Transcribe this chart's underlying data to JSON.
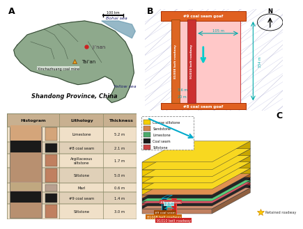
{
  "panel_A_label": "A",
  "panel_B_label": "B",
  "panel_C_label": "C",
  "map_annotations": {
    "jinan": "Ji’nan",
    "taian": "Tai’an",
    "mine": "Xinchazhuang coal mine",
    "province": "Shandong Province, China",
    "bohai": "Bohai sea",
    "yellow": "Yellow sea",
    "scale": "100 km"
  },
  "panel_B_annotations": {
    "top_label": "#9 coal seam goaf",
    "bottom_label": "#8 coal seam goaf",
    "roadway1": "81008 belt roadway",
    "roadway2": "91010 belt roadway",
    "dim1": "105 m",
    "dim2": "354 m",
    "dim3": "3.6 m",
    "dim4": "20 m"
  },
  "lithology_table": {
    "headers": [
      "Histogram",
      "Lithology",
      "Thickness"
    ],
    "rows": [
      {
        "lithology": "Limestone",
        "thickness": "5.2 m",
        "color": "#d4a57a"
      },
      {
        "lithology": "#8 coal seam",
        "thickness": "2.1 m",
        "color": "#1a1a1a"
      },
      {
        "lithology": "Argillaceous\nsiltstone",
        "thickness": "1.7 m",
        "color": "#c08060"
      },
      {
        "lithology": "Siltstone",
        "thickness": "5.0 m",
        "color": "#c08060"
      },
      {
        "lithology": "Marl",
        "thickness": "0.6 m",
        "color": "#b8a090"
      },
      {
        "lithology": "#9 coal seam",
        "thickness": "1.4 m",
        "color": "#1a1a1a"
      },
      {
        "lithology": "Siltstone",
        "thickness": "3.0 m",
        "color": "#c08060"
      }
    ]
  },
  "legend_items": [
    {
      "label": "Coarse siltstone",
      "color": "#f5d000"
    },
    {
      "label": "Sandstone",
      "color": "#d4824a"
    },
    {
      "label": "Limestone",
      "color": "#4aaa6a"
    },
    {
      "label": "Coal seam",
      "color": "#1a1a1a"
    },
    {
      "label": "Siltstone",
      "color": "#cc4444"
    }
  ],
  "panel_C_labels": {
    "coal8": "#8 coal seam",
    "coal9": "#9 coal seam",
    "roadway1": "81008 belt roadway",
    "roadway2": "91010 belt roadway",
    "distance": "7.3 m",
    "retained": "Retained roadway"
  }
}
